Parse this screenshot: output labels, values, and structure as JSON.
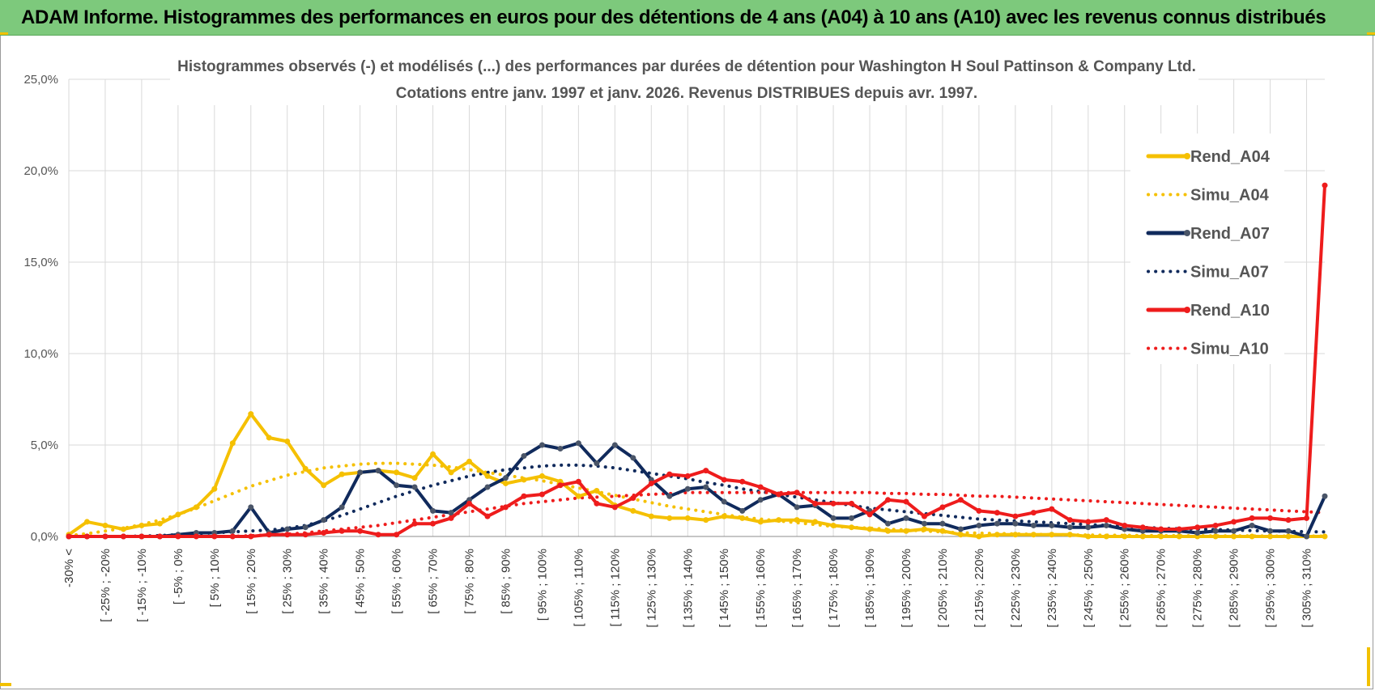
{
  "header": {
    "title": "ADAM Informe. Histogrammes des performances en euros pour des détentions de 4 ans (A04) à 10 ans (A10) avec les revenus connus distribués"
  },
  "colors": {
    "header_bg": "#7dc97c",
    "A04": "#f5c000",
    "A07": "#102a5c",
    "A10": "#ee1c1c",
    "grid": "#d9d9d9"
  },
  "chart_data": {
    "type": "line",
    "title": "Histogrammes observés (-) et modélisés (...) des performances par durées de détention pour Washington H Soul Pattinson & Company Ltd.",
    "subtitle": "Cotations entre janv. 1997 et janv. 2026. Revenus DISTRIBUES depuis avr. 1997.",
    "ylim": [
      0,
      25
    ],
    "yticks": [
      "0,0%",
      "5,0%",
      "10,0%",
      "15,0%",
      "20,0%",
      "25,0%"
    ],
    "x_labels": [
      "-30% <",
      "[ -25% ; -20%",
      "[ -15% ; -10%",
      "[ -5% ; 0%",
      "[ 5% ; 10%",
      "[ 15% ; 20%",
      "[ 25% ; 30%",
      "[ 35% ; 40%",
      "[ 45% ; 50%",
      "[ 55% ; 60%",
      "[ 65% ; 70%",
      "[ 75% ; 80%",
      "[ 85% ; 90%",
      "[ 95% ; 100%",
      "[ 105% ; 110%",
      "[ 115% ; 120%",
      "[ 125% ; 130%",
      "[ 135% ; 140%",
      "[ 145% ; 150%",
      "[ 155% ; 160%",
      "[ 165% ; 170%",
      "[ 175% ; 180%",
      "[ 185% ; 190%",
      "[ 195% ; 200%",
      "[ 205% ; 210%",
      "[ 215% ; 220%",
      "[ 225% ; 230%",
      "[ 235% ; 240%",
      "[ 245% ; 250%",
      "[ 255% ; 260%",
      "[ 265% ; 270%",
      "[ 275% ; 280%",
      "[ 285% ; 290%",
      "[ 295% ; 300%",
      "[ 305% ; 310%"
    ],
    "n_points": 70,
    "legend_position": "right",
    "series": [
      {
        "name": "Rend_A04",
        "style": "solid",
        "color": "#f5c000",
        "values": [
          0.1,
          0.8,
          0.6,
          0.4,
          0.6,
          0.7,
          1.2,
          1.6,
          2.6,
          5.1,
          6.7,
          5.4,
          5.2,
          3.7,
          2.8,
          3.4,
          3.5,
          3.6,
          3.5,
          3.2,
          4.5,
          3.5,
          4.1,
          3.3,
          2.9,
          3.1,
          3.3,
          3.0,
          2.2,
          2.5,
          1.7,
          1.4,
          1.1,
          1.0,
          1.0,
          0.9,
          1.1,
          1.0,
          0.8,
          0.9,
          0.9,
          0.8,
          0.6,
          0.5,
          0.4,
          0.3,
          0.3,
          0.4,
          0.3,
          0.1,
          0.0,
          0.1,
          0.1,
          0.1,
          0.1,
          0.1,
          0.0,
          0.0,
          0.0,
          0.0,
          0.0,
          0.0,
          0.0,
          0.0,
          0.0,
          0.0,
          0.0,
          0.0,
          0.0,
          0.0
        ]
      },
      {
        "name": "Simu_A04",
        "style": "dotted",
        "color": "#f5c000",
        "values": [
          0.05,
          0.15,
          0.3,
          0.45,
          0.65,
          0.9,
          1.2,
          1.55,
          1.95,
          2.35,
          2.75,
          3.05,
          3.35,
          3.55,
          3.75,
          3.85,
          3.95,
          4.0,
          4.0,
          3.95,
          3.9,
          3.8,
          3.65,
          3.5,
          3.35,
          3.2,
          3.05,
          2.85,
          2.65,
          2.45,
          2.25,
          2.05,
          1.85,
          1.65,
          1.5,
          1.35,
          1.2,
          1.05,
          0.95,
          0.85,
          0.75,
          0.65,
          0.55,
          0.5,
          0.45,
          0.4,
          0.35,
          0.3,
          0.25,
          0.2,
          0.18,
          0.16,
          0.14,
          0.12,
          0.1,
          0.09,
          0.08,
          0.07,
          0.06,
          0.05,
          0.05,
          0.04,
          0.04,
          0.03,
          0.03,
          0.03,
          0.02,
          0.02,
          0.02,
          0.02
        ]
      },
      {
        "name": "Rend_A07",
        "style": "solid",
        "color": "#102a5c",
        "values": [
          0.0,
          0.0,
          0.0,
          0.0,
          0.0,
          0.0,
          0.1,
          0.2,
          0.2,
          0.3,
          1.6,
          0.2,
          0.4,
          0.5,
          0.9,
          1.6,
          3.5,
          3.6,
          2.8,
          2.7,
          1.4,
          1.3,
          2.0,
          2.7,
          3.2,
          4.4,
          5.0,
          4.8,
          5.1,
          4.0,
          5.0,
          4.3,
          3.1,
          2.2,
          2.6,
          2.7,
          1.9,
          1.4,
          2.0,
          2.3,
          1.6,
          1.7,
          1.0,
          1.0,
          1.4,
          0.7,
          1.0,
          0.7,
          0.7,
          0.4,
          0.6,
          0.7,
          0.7,
          0.6,
          0.6,
          0.5,
          0.5,
          0.6,
          0.4,
          0.3,
          0.3,
          0.3,
          0.2,
          0.3,
          0.3,
          0.6,
          0.3,
          0.3,
          0.0,
          2.2
        ]
      },
      {
        "name": "Simu_A07",
        "style": "dotted",
        "color": "#102a5c",
        "values": [
          0.0,
          0.0,
          0.0,
          0.0,
          0.02,
          0.05,
          0.1,
          0.15,
          0.2,
          0.25,
          0.3,
          0.35,
          0.45,
          0.6,
          0.85,
          1.15,
          1.5,
          1.85,
          2.2,
          2.5,
          2.8,
          3.05,
          3.3,
          3.5,
          3.65,
          3.75,
          3.85,
          3.9,
          3.9,
          3.85,
          3.75,
          3.6,
          3.45,
          3.3,
          3.15,
          2.95,
          2.8,
          2.6,
          2.45,
          2.3,
          2.15,
          2.0,
          1.85,
          1.7,
          1.55,
          1.45,
          1.35,
          1.25,
          1.15,
          1.05,
          0.95,
          0.9,
          0.85,
          0.8,
          0.75,
          0.7,
          0.65,
          0.6,
          0.55,
          0.5,
          0.45,
          0.42,
          0.4,
          0.38,
          0.35,
          0.32,
          0.3,
          0.28,
          0.26,
          0.25
        ]
      },
      {
        "name": "Rend_A10",
        "style": "solid",
        "color": "#ee1c1c",
        "values": [
          0.0,
          0.0,
          0.0,
          0.0,
          0.0,
          0.0,
          0.0,
          0.0,
          0.0,
          0.0,
          0.0,
          0.1,
          0.1,
          0.1,
          0.2,
          0.3,
          0.3,
          0.1,
          0.1,
          0.7,
          0.7,
          1.0,
          1.8,
          1.1,
          1.6,
          2.2,
          2.3,
          2.8,
          3.0,
          1.8,
          1.6,
          2.1,
          2.9,
          3.4,
          3.3,
          3.6,
          3.1,
          3.0,
          2.7,
          2.3,
          2.4,
          1.8,
          1.8,
          1.8,
          1.2,
          2.0,
          1.9,
          1.1,
          1.6,
          2.0,
          1.4,
          1.3,
          1.1,
          1.3,
          1.5,
          0.9,
          0.8,
          0.9,
          0.6,
          0.5,
          0.4,
          0.4,
          0.5,
          0.6,
          0.8,
          1.0,
          1.0,
          0.9,
          1.0,
          19.2
        ]
      },
      {
        "name": "Simu_A10",
        "style": "dotted",
        "color": "#ee1c1c",
        "values": [
          0.0,
          0.0,
          0.0,
          0.0,
          0.0,
          0.0,
          0.0,
          0.0,
          0.0,
          0.0,
          0.05,
          0.08,
          0.12,
          0.2,
          0.3,
          0.4,
          0.5,
          0.6,
          0.75,
          0.9,
          1.05,
          1.2,
          1.35,
          1.5,
          1.65,
          1.8,
          1.9,
          2.0,
          2.1,
          2.15,
          2.2,
          2.25,
          2.3,
          2.35,
          2.4,
          2.4,
          2.4,
          2.4,
          2.4,
          2.4,
          2.4,
          2.4,
          2.4,
          2.4,
          2.4,
          2.35,
          2.35,
          2.3,
          2.3,
          2.25,
          2.2,
          2.2,
          2.15,
          2.1,
          2.05,
          2.0,
          1.95,
          1.9,
          1.85,
          1.8,
          1.75,
          1.7,
          1.65,
          1.6,
          1.55,
          1.5,
          1.45,
          1.4,
          1.35,
          1.3
        ]
      }
    ]
  }
}
